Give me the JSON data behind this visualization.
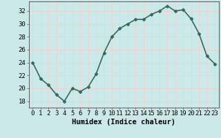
{
  "x": [
    0,
    1,
    2,
    3,
    4,
    5,
    6,
    7,
    8,
    9,
    10,
    11,
    12,
    13,
    14,
    15,
    16,
    17,
    18,
    19,
    20,
    21,
    22,
    23
  ],
  "y": [
    24,
    21.5,
    20.5,
    19.0,
    18.0,
    20.0,
    19.5,
    20.2,
    22.2,
    25.5,
    28.0,
    29.3,
    30.0,
    30.7,
    30.7,
    31.5,
    32.0,
    32.8,
    32.0,
    32.2,
    30.8,
    28.5,
    25.0,
    23.8
  ],
  "line_color": "#2e6b5e",
  "marker": "D",
  "marker_size": 2.5,
  "bg_color": "#cce9e9",
  "grid_color": "#f0d0d0",
  "xlabel": "Humidex (Indice chaleur)",
  "xlim": [
    -0.5,
    23.5
  ],
  "ylim": [
    17,
    33.5
  ],
  "yticks": [
    18,
    20,
    22,
    24,
    26,
    28,
    30,
    32
  ],
  "xticks": [
    0,
    1,
    2,
    3,
    4,
    5,
    6,
    7,
    8,
    9,
    10,
    11,
    12,
    13,
    14,
    15,
    16,
    17,
    18,
    19,
    20,
    21,
    22,
    23
  ],
  "xlabel_fontsize": 7.5,
  "tick_fontsize": 6.5,
  "line_width": 1.2,
  "spine_color": "#666666"
}
